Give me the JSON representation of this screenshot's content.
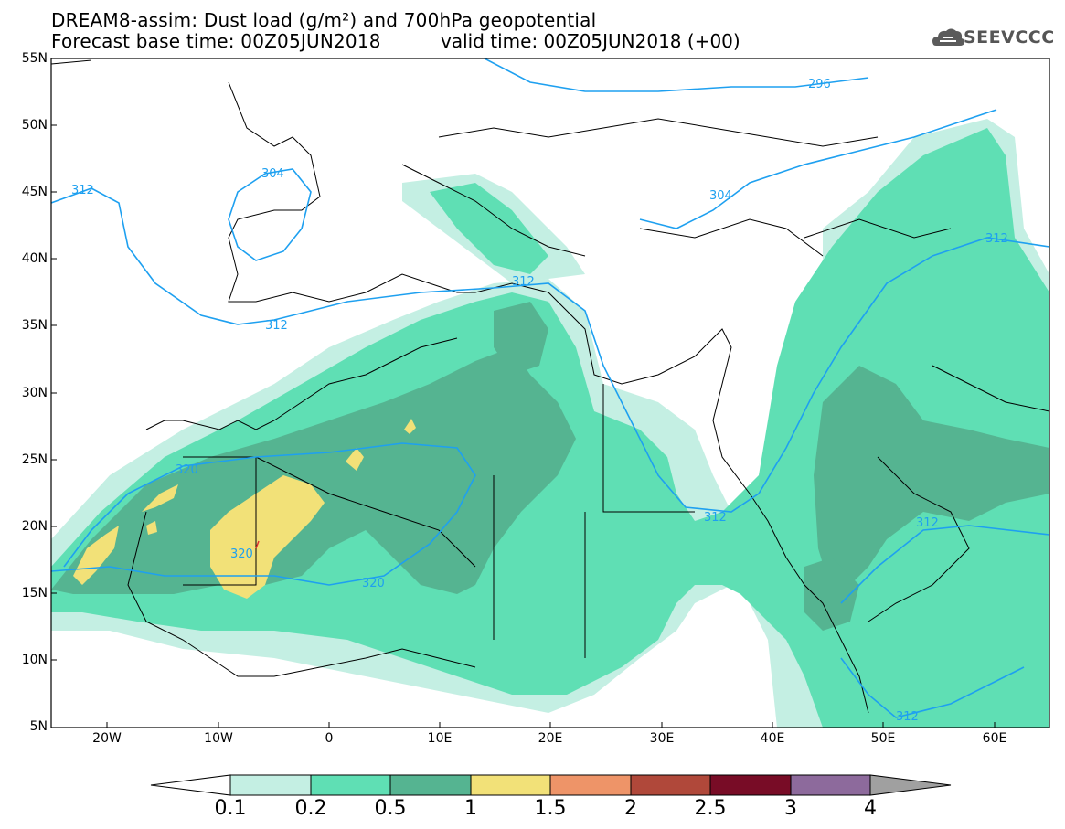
{
  "header": {
    "title_line1": "DREAM8-assim: Dust load (g/m²) and 700hPa geopotential",
    "title_line2": "Forecast base time: 00Z05JUN2018",
    "valid_time": "valid time: 00Z05JUN2018 (+00)",
    "logo_text": "SEEVCCC",
    "logo_icon": "cloud-logo-icon"
  },
  "axes": {
    "lat_labels": [
      "55N",
      "50N",
      "45N",
      "40N",
      "35N",
      "30N",
      "25N",
      "20N",
      "15N",
      "10N",
      "5N"
    ],
    "lon_labels": [
      "20W",
      "10W",
      "0",
      "10E",
      "20E",
      "30E",
      "40E",
      "50E",
      "60E"
    ]
  },
  "contours": {
    "labels": [
      "296",
      "304",
      "304",
      "312",
      "312",
      "312",
      "312",
      "312",
      "312",
      "312",
      "320",
      "320",
      "320"
    ]
  },
  "colorbar": {
    "labels": [
      "0.1",
      "0.2",
      "0.5",
      "1",
      "1.5",
      "2",
      "2.5",
      "3",
      "4"
    ],
    "colors": [
      "#ffffff",
      "#c4efe3",
      "#5fdfb4",
      "#55b491",
      "#f2e178",
      "#ee9468",
      "#b0483a",
      "#780c26",
      "#8d6a9c",
      "#a0a0a0"
    ]
  },
  "colors": {
    "dust_low": "#c4efe3",
    "dust_mid": "#5fdfb4",
    "dust_high": "#55b491",
    "dust_peak": "#f2e178",
    "contour": "#1ea0f0"
  }
}
